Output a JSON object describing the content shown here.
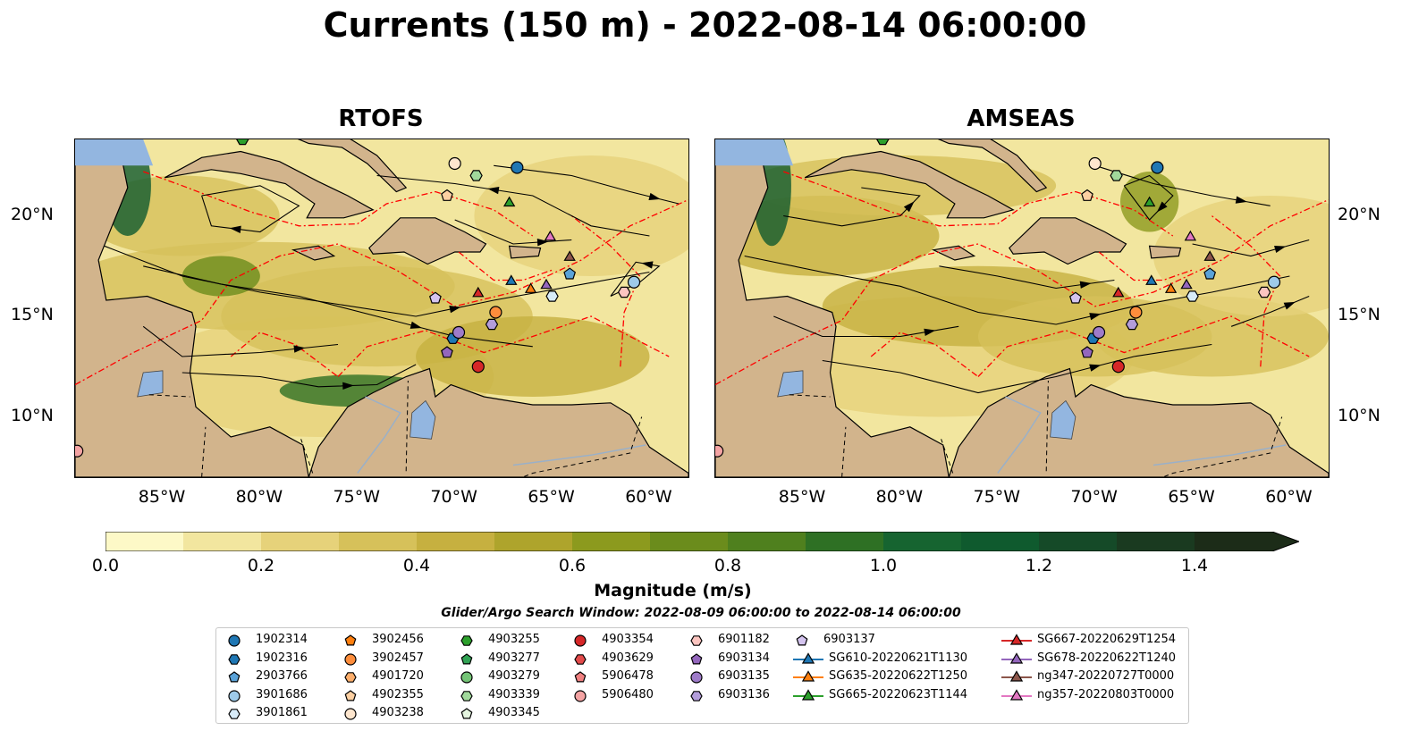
{
  "title": "Currents (150 m) - 2022-08-14 06:00:00",
  "panels": [
    {
      "title": "RTOFS"
    },
    {
      "title": "AMSEAS"
    }
  ],
  "axes": {
    "x_ticks": [
      "85°W",
      "80°W",
      "75°W",
      "70°W",
      "65°W",
      "60°W"
    ],
    "y_ticks": [
      "20°N",
      "15°N",
      "10°N"
    ],
    "x_range": [
      -89.5,
      -58.0
    ],
    "y_range": [
      7.0,
      23.8
    ]
  },
  "colorbar": {
    "label": "Magnitude (m/s)",
    "ticks": [
      "0.0",
      "0.2",
      "0.4",
      "0.6",
      "0.8",
      "1.0",
      "1.2",
      "1.4"
    ],
    "range": [
      0.0,
      1.5
    ],
    "extend": "max",
    "colors": [
      "#fdf9c7",
      "#f2e69f",
      "#e6d27a",
      "#d6c15a",
      "#c6b040",
      "#aea42c",
      "#8c9a1e",
      "#6b8c1c",
      "#4f801e",
      "#2e7024",
      "#166430",
      "#0f5a2e",
      "#154a28",
      "#1a3a20",
      "#1c2c18"
    ]
  },
  "subtitle": "Glider/Argo Search Window: 2022-08-09 06:00:00 to 2022-08-14 06:00:00",
  "colors": {
    "ocean_fill": "#e9dc9b",
    "land": "#d2b48c",
    "water": "#93b6e0",
    "eez_line": "#ff0000",
    "streamline": "#000000"
  },
  "legend": {
    "columns": [
      [
        {
          "label": "1902314",
          "marker": "circle",
          "color": "#1f77b4"
        },
        {
          "label": "1902316",
          "marker": "hexagon",
          "color": "#1f77b4"
        },
        {
          "label": "2903766",
          "marker": "pentagon",
          "color": "#5aa2d8"
        },
        {
          "label": "3901686",
          "marker": "circle",
          "color": "#9ecae9"
        },
        {
          "label": "3901861",
          "marker": "hexagon",
          "color": "#d7ebf8"
        }
      ],
      [
        {
          "label": "3902456",
          "marker": "pentagon",
          "color": "#ff7f0e"
        },
        {
          "label": "3902457",
          "marker": "circle",
          "color": "#fd8d3c"
        },
        {
          "label": "4901720",
          "marker": "hexagon",
          "color": "#fdae6b"
        },
        {
          "label": "4902355",
          "marker": "pentagon",
          "color": "#fdd0a2"
        },
        {
          "label": "4903238",
          "marker": "circle",
          "color": "#fee6ce"
        }
      ],
      [
        {
          "label": "4903255",
          "marker": "hexagon",
          "color": "#2ca02c"
        },
        {
          "label": "4903277",
          "marker": "pentagon",
          "color": "#31a354"
        },
        {
          "label": "4903279",
          "marker": "circle",
          "color": "#74c476"
        },
        {
          "label": "4903339",
          "marker": "hexagon",
          "color": "#a1d99b"
        },
        {
          "label": "4903345",
          "marker": "pentagon",
          "color": "#e5f5e0"
        }
      ],
      [
        {
          "label": "4903354",
          "marker": "circle",
          "color": "#d62728"
        },
        {
          "label": "4903629",
          "marker": "hexagon",
          "color": "#e34a4a"
        },
        {
          "label": "5906478",
          "marker": "pentagon",
          "color": "#f08080"
        },
        {
          "label": "5906480",
          "marker": "circle",
          "color": "#f4a3a3"
        }
      ],
      [
        {
          "label": "6901182",
          "marker": "hexagon",
          "color": "#fcc5c0"
        },
        {
          "label": "6903134",
          "marker": "pentagon",
          "color": "#9467bd"
        },
        {
          "label": "6903135",
          "marker": "circle",
          "color": "#9e7bc9"
        },
        {
          "label": "6903136",
          "marker": "hexagon",
          "color": "#b39ddb"
        }
      ],
      [
        {
          "label": "6903137",
          "marker": "pentagon",
          "color": "#d4c4ef"
        },
        {
          "label": "SG610-20220621T1130",
          "marker": "triangle",
          "color": "#1f77b4"
        },
        {
          "label": "SG635-20220622T1250",
          "marker": "triangle",
          "color": "#ff7f0e"
        },
        {
          "label": "SG665-20220623T1144",
          "marker": "triangle",
          "color": "#2ca02c"
        }
      ],
      [
        {
          "label": "SG667-20220629T1254",
          "marker": "triangle",
          "color": "#d62728"
        },
        {
          "label": "SG678-20220622T1240",
          "marker": "triangle",
          "color": "#9467bd"
        },
        {
          "label": "ng347-20220727T0000",
          "marker": "triangle",
          "color": "#8c564b"
        },
        {
          "label": "ng357-20220803T0000",
          "marker": "triangle",
          "color": "#e377c2"
        }
      ]
    ]
  },
  "chart_data": {
    "type": "map",
    "variable": "ocean current magnitude at 150 m",
    "unit": "m/s",
    "time": "2022-08-14 06:00:00",
    "markers": [
      {
        "label": "1902314",
        "lon": -66.8,
        "lat": 22.4
      },
      {
        "label": "1902316",
        "lon": -70.1,
        "lat": 13.9
      },
      {
        "label": "2903766",
        "lon": -64.1,
        "lat": 17.1
      },
      {
        "label": "3901686",
        "lon": -60.8,
        "lat": 16.7
      },
      {
        "label": "3901861",
        "lon": -65.0,
        "lat": 16.0
      },
      {
        "label": "3902457",
        "lon": -67.9,
        "lat": 15.2
      },
      {
        "label": "4902355",
        "lon": -70.4,
        "lat": 21.0
      },
      {
        "label": "4903238",
        "lon": -70.0,
        "lat": 22.6
      },
      {
        "label": "4903255",
        "lon": -80.9,
        "lat": 23.8
      },
      {
        "label": "4903339",
        "lon": -68.9,
        "lat": 22.0
      },
      {
        "label": "5906480",
        "lon": -89.4,
        "lat": 8.3
      },
      {
        "label": "6901182",
        "lon": -61.3,
        "lat": 16.2
      },
      {
        "label": "6903134",
        "lon": -70.4,
        "lat": 13.2
      },
      {
        "label": "6903135",
        "lon": -69.8,
        "lat": 14.2
      },
      {
        "label": "6903136",
        "lon": -68.1,
        "lat": 14.6
      },
      {
        "label": "6903137",
        "lon": -71.0,
        "lat": 15.9
      },
      {
        "label": "4903354",
        "lon": -68.8,
        "lat": 12.5
      },
      {
        "label": "SG610-20220621T1130",
        "lon": -67.1,
        "lat": 16.8
      },
      {
        "label": "SG635-20220622T1250",
        "lon": -66.1,
        "lat": 16.4
      },
      {
        "label": "SG665-20220623T1144",
        "lon": -67.2,
        "lat": 20.7
      },
      {
        "label": "SG667-20220629T1254",
        "lon": -68.8,
        "lat": 16.2
      },
      {
        "label": "SG678-20220622T1240",
        "lon": -65.3,
        "lat": 16.6
      },
      {
        "label": "ng347-20220727T0000",
        "lon": -64.1,
        "lat": 18.0
      },
      {
        "label": "ng357-20220803T0000",
        "lon": -65.1,
        "lat": 19.0
      }
    ]
  }
}
